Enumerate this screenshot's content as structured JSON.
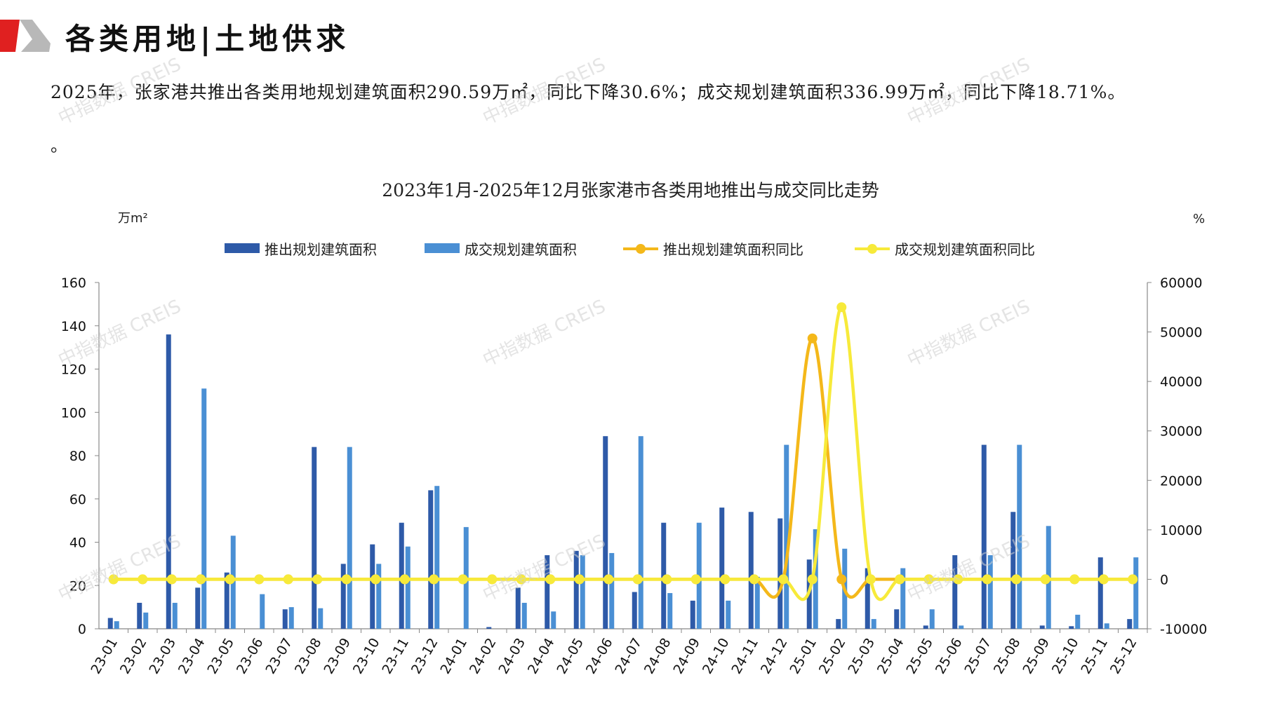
{
  "header": {
    "title": "各类用地|土地供求"
  },
  "summary": {
    "text": "2025年，张家港共推出各类用地规划建筑面积290.59万㎡，同比下降30.6%；成交规划建筑面积336.99万㎡，同比下降18.71%。",
    "trailing": "。"
  },
  "watermark": {
    "text": "中指数据 CREIS"
  },
  "colors": {
    "logo_red": "#e02020",
    "logo_grey": "#b8b8b8",
    "supply_bar": "#2e5aa8",
    "deal_bar": "#4a8fd4",
    "supply_yoy": "#f4b81a",
    "deal_yoy": "#f7ea3a"
  },
  "chart_data": {
    "type": "bar",
    "title": "2023年1月-2025年12月张家港市各类用地推出与成交同比走势",
    "ylabel_left": "万m²",
    "ylabel_right": "%",
    "ylim_left": [
      0,
      160
    ],
    "yticks_left": [
      0,
      20,
      40,
      60,
      80,
      100,
      120,
      140,
      160
    ],
    "ylim_right": [
      -10000,
      60000
    ],
    "yticks_right": [
      -10000,
      0,
      10000,
      20000,
      30000,
      40000,
      50000,
      60000
    ],
    "legend_position": "top",
    "grid": false,
    "categories": [
      "23-01",
      "23-02",
      "23-03",
      "23-04",
      "23-05",
      "23-06",
      "23-07",
      "23-08",
      "23-09",
      "23-10",
      "23-11",
      "23-12",
      "24-01",
      "24-02",
      "24-03",
      "24-04",
      "24-05",
      "24-06",
      "24-07",
      "24-08",
      "24-09",
      "24-10",
      "24-11",
      "24-12",
      "25-01",
      "25-02",
      "25-03",
      "25-04",
      "25-05",
      "25-06",
      "25-07",
      "25-08",
      "25-09",
      "25-10",
      "25-11",
      "25-12"
    ],
    "series": [
      {
        "name": "推出规划建筑面积",
        "kind": "bar",
        "axis": "left",
        "values": [
          5,
          12,
          136,
          19,
          26,
          0,
          9,
          84,
          30,
          39,
          49,
          64,
          0,
          0.8,
          19,
          34,
          36,
          89,
          17,
          49,
          13,
          56,
          54,
          51,
          32,
          4.5,
          28,
          9,
          1.5,
          34,
          85,
          54,
          1.5,
          1.2,
          33,
          4.5
        ]
      },
      {
        "name": "成交规划建筑面积",
        "kind": "bar",
        "axis": "left",
        "values": [
          3.5,
          7.5,
          12,
          111,
          43,
          16,
          10,
          9.5,
          84,
          30,
          38,
          66,
          47,
          0,
          12,
          8,
          34,
          35,
          89,
          16.5,
          49,
          13,
          24,
          85,
          46,
          37,
          4.5,
          28,
          9,
          1.5,
          34,
          85,
          47.5,
          6.5,
          2.5,
          33
        ]
      },
      {
        "name": "推出规划建筑面积同比",
        "kind": "line",
        "axis": "right",
        "values": [
          0,
          0,
          0,
          0,
          0,
          0,
          0,
          0,
          0,
          0,
          0,
          0,
          0,
          0,
          0,
          0,
          0,
          0,
          0,
          0,
          0,
          0,
          0,
          0,
          48700,
          0,
          0,
          0,
          0,
          0,
          0,
          0,
          0,
          0,
          0,
          0
        ]
      },
      {
        "name": "成交规划建筑面积同比",
        "kind": "line",
        "axis": "right",
        "values": [
          0,
          0,
          0,
          0,
          0,
          0,
          0,
          0,
          0,
          0,
          0,
          0,
          0,
          0,
          0,
          0,
          0,
          0,
          0,
          0,
          0,
          0,
          0,
          0,
          0,
          55000,
          0,
          0,
          0,
          0,
          0,
          0,
          0,
          0,
          0,
          0
        ]
      }
    ]
  }
}
